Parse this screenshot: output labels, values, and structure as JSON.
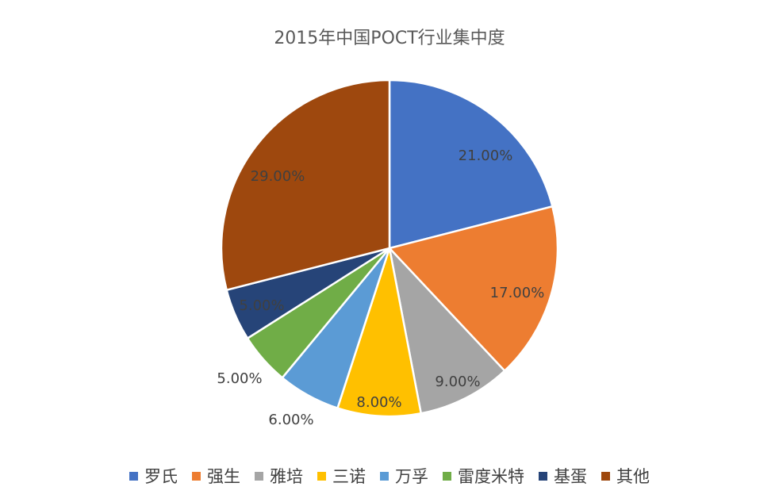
{
  "chart_data": {
    "type": "pie",
    "title": "2015年中国POCT行业集中度",
    "legend_position": "bottom",
    "slices": [
      {
        "name": "罗氏",
        "value": 21,
        "label": "21.00%",
        "color": "#4472C4"
      },
      {
        "name": "强生",
        "value": 17,
        "label": "17.00%",
        "color": "#ED7D31"
      },
      {
        "name": "雅培",
        "value": 9,
        "label": "9.00%",
        "color": "#A5A5A5"
      },
      {
        "name": "三诺",
        "value": 8,
        "label": "8.00%",
        "color": "#FFC000"
      },
      {
        "name": "万孚",
        "value": 6,
        "label": "6.00%",
        "color": "#5B9BD5"
      },
      {
        "name": "雷度米特",
        "value": 5,
        "label": "5.00%",
        "color": "#70AD47"
      },
      {
        "name": "基蛋",
        "value": 5,
        "label": "5.00%",
        "color": "#264478"
      },
      {
        "name": "其他",
        "value": 29,
        "label": "29.00%",
        "color": "#9E480E"
      }
    ]
  }
}
